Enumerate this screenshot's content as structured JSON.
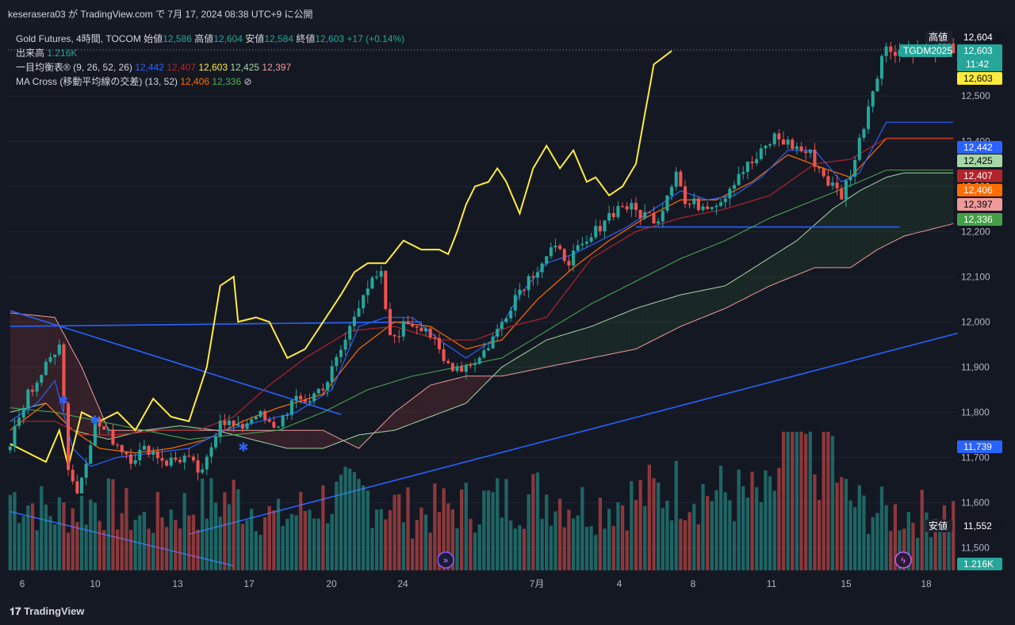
{
  "header": {
    "publish_text": "keserasera03 が TradingView.com で 7月 17, 2024 08:38 UTC+9 に公開"
  },
  "legend": {
    "symbol": "Gold Futures, 4時間, TOCOM",
    "open_label": "始値",
    "open": "12,586",
    "high_label": "高値",
    "high": "12,604",
    "low_label": "安値",
    "low": "12,584",
    "close_label": "終値",
    "close": "12,603",
    "change": "+17 (+0.14%)",
    "volume_label": "出来高",
    "volume": "1.216K",
    "ichimoku_label": "一目均衡表® (9, 26, 52, 26)",
    "ichimoku_values": [
      "12,442",
      "12,407",
      "12,603",
      "12,425",
      "12,397"
    ],
    "ma_label": "MA Cross (移動平均線の交差) (13, 52)",
    "ma_values": [
      "12,406",
      "12,336"
    ],
    "ma_icon": "⊘"
  },
  "price_axis": {
    "ticks": [
      "12,500",
      "12,400",
      "12,300",
      "12,200",
      "12,100",
      "12,000",
      "11,900",
      "11,800",
      "11,700",
      "11,600",
      "11,500"
    ],
    "tags": [
      {
        "label": "高値",
        "value": "12,604",
        "color": "#131722",
        "text": "#ffffff",
        "label_bg": "#1e222d"
      },
      {
        "label": "TGDM2025",
        "value": "12,603",
        "sub": "11:42",
        "color": "#26a69a",
        "text": "#ffffff"
      },
      {
        "value": "12,603",
        "color": "#ffeb3b",
        "text": "#000000"
      },
      {
        "value": "12,442",
        "color": "#2962ff",
        "text": "#ffffff"
      },
      {
        "value": "12,425",
        "color": "#a5d6a7",
        "text": "#000000"
      },
      {
        "value": "12,407",
        "color": "#b2242c",
        "text": "#ffffff"
      },
      {
        "value": "12,406",
        "color": "#ff6d00",
        "text": "#ffffff"
      },
      {
        "value": "12,397",
        "color": "#ef9a9a",
        "text": "#000000"
      },
      {
        "value": "12,336",
        "color": "#43a047",
        "text": "#ffffff"
      },
      {
        "value": "11,739",
        "color": "#2962ff",
        "text": "#ffffff"
      },
      {
        "label": "安値",
        "value": "11,552",
        "color": "#131722",
        "text": "#ffffff",
        "label_bg": "#1e222d"
      },
      {
        "value": "1.216K",
        "color": "#26a69a",
        "text": "#ffffff"
      }
    ]
  },
  "time_axis": {
    "labels": [
      "6",
      "10",
      "13",
      "17",
      "20",
      "24",
      "7月",
      "4",
      "8",
      "11",
      "15",
      "18"
    ]
  },
  "footer": {
    "logo_text": "TradingView"
  },
  "colors": {
    "background": "#141823",
    "up": "#26a69a",
    "down": "#ef5350",
    "tenkan": "#2962ff",
    "kijun": "#b2242c",
    "chikou": "#ffeb3b",
    "senkou_a": "#a5d6a7",
    "senkou_b": "#ef9a9a",
    "ma_fast": "#ff6d00",
    "ma_slow": "#4caf50",
    "trendline": "#2962ff"
  },
  "chart_data": {
    "type": "candlestick",
    "title": "Gold Futures, 4時間, TOCOM",
    "ylim": [
      11450,
      12660
    ],
    "candle_anchors": [
      [
        0,
        11730
      ],
      [
        4,
        11840
      ],
      [
        8,
        11900
      ],
      [
        11,
        11960
      ],
      [
        13,
        11680
      ],
      [
        15,
        11620
      ],
      [
        19,
        11780
      ],
      [
        23,
        11740
      ],
      [
        27,
        11700
      ],
      [
        31,
        11720
      ],
      [
        35,
        11690
      ],
      [
        39,
        11700
      ],
      [
        43,
        11660
      ],
      [
        47,
        11790
      ],
      [
        51,
        11760
      ],
      [
        55,
        11800
      ],
      [
        59,
        11760
      ],
      [
        63,
        11820
      ],
      [
        67,
        11830
      ],
      [
        71,
        11870
      ],
      [
        75,
        11960
      ],
      [
        79,
        12070
      ],
      [
        83,
        12100
      ],
      [
        85,
        11960
      ],
      [
        89,
        12000
      ],
      [
        93,
        11990
      ],
      [
        97,
        11910
      ],
      [
        101,
        11900
      ],
      [
        105,
        11920
      ],
      [
        109,
        11980
      ],
      [
        113,
        12060
      ],
      [
        117,
        12110
      ],
      [
        121,
        12160
      ],
      [
        125,
        12140
      ],
      [
        129,
        12170
      ],
      [
        133,
        12230
      ],
      [
        137,
        12260
      ],
      [
        141,
        12240
      ],
      [
        145,
        12230
      ],
      [
        149,
        12340
      ],
      [
        151,
        12260
      ],
      [
        155,
        12260
      ],
      [
        159,
        12270
      ],
      [
        163,
        12330
      ],
      [
        167,
        12360
      ],
      [
        171,
        12410
      ],
      [
        175,
        12390
      ],
      [
        179,
        12370
      ],
      [
        183,
        12310
      ],
      [
        186,
        12280
      ],
      [
        189,
        12360
      ],
      [
        192,
        12480
      ],
      [
        195,
        12590
      ],
      [
        196,
        12603
      ]
    ],
    "chikou_anchors": [
      [
        0,
        11730
      ],
      [
        4,
        11710
      ],
      [
        8,
        11690
      ],
      [
        11,
        11760
      ],
      [
        13,
        11680
      ],
      [
        16,
        11800
      ],
      [
        20,
        11780
      ],
      [
        24,
        11800
      ],
      [
        28,
        11760
      ],
      [
        32,
        11830
      ],
      [
        36,
        11790
      ],
      [
        40,
        11780
      ],
      [
        44,
        11900
      ],
      [
        47,
        12080
      ],
      [
        50,
        12100
      ],
      [
        51,
        12000
      ],
      [
        55,
        12010
      ],
      [
        58,
        12000
      ],
      [
        62,
        11920
      ],
      [
        66,
        11940
      ],
      [
        70,
        12000
      ],
      [
        74,
        12060
      ],
      [
        77,
        12110
      ],
      [
        80,
        12130
      ],
      [
        84,
        12130
      ],
      [
        88,
        12180
      ],
      [
        92,
        12160
      ],
      [
        96,
        12160
      ],
      [
        98,
        12150
      ],
      [
        100,
        12200
      ],
      [
        102,
        12260
      ],
      [
        104,
        12300
      ],
      [
        107,
        12310
      ],
      [
        109,
        12340
      ],
      [
        111,
        12310
      ],
      [
        114,
        12240
      ],
      [
        117,
        12340
      ],
      [
        120,
        12390
      ],
      [
        123,
        12340
      ],
      [
        126,
        12380
      ],
      [
        129,
        12310
      ],
      [
        131,
        12320
      ],
      [
        134,
        12280
      ],
      [
        137,
        12300
      ],
      [
        140,
        12350
      ],
      [
        144,
        12570
      ],
      [
        148,
        12600
      ]
    ],
    "kumo_a_anchors": [
      [
        0,
        11800
      ],
      [
        8,
        11820
      ],
      [
        14,
        11760
      ],
      [
        22,
        11740
      ],
      [
        30,
        11760
      ],
      [
        38,
        11770
      ],
      [
        46,
        11760
      ],
      [
        54,
        11740
      ],
      [
        62,
        11720
      ],
      [
        70,
        11720
      ],
      [
        78,
        11750
      ],
      [
        86,
        11760
      ],
      [
        94,
        11790
      ],
      [
        102,
        11820
      ],
      [
        110,
        11900
      ],
      [
        120,
        11960
      ],
      [
        130,
        11990
      ],
      [
        140,
        12030
      ],
      [
        150,
        12060
      ],
      [
        160,
        12080
      ],
      [
        168,
        12130
      ],
      [
        176,
        12180
      ],
      [
        184,
        12250
      ],
      [
        190,
        12290
      ],
      [
        196,
        12320
      ],
      [
        200,
        12330
      ],
      [
        212,
        12330
      ]
    ],
    "kumo_b_anchors": [
      [
        0,
        12020
      ],
      [
        10,
        12010
      ],
      [
        16,
        11900
      ],
      [
        22,
        11760
      ],
      [
        30,
        11760
      ],
      [
        40,
        11760
      ],
      [
        50,
        11760
      ],
      [
        60,
        11760
      ],
      [
        70,
        11760
      ],
      [
        78,
        11720
      ],
      [
        86,
        11800
      ],
      [
        94,
        11860
      ],
      [
        102,
        11880
      ],
      [
        110,
        11880
      ],
      [
        120,
        11900
      ],
      [
        130,
        11920
      ],
      [
        140,
        11940
      ],
      [
        150,
        11990
      ],
      [
        160,
        12030
      ],
      [
        170,
        12080
      ],
      [
        180,
        12120
      ],
      [
        188,
        12120
      ],
      [
        194,
        12160
      ],
      [
        200,
        12190
      ],
      [
        212,
        12220
      ]
    ],
    "tenkan_anchors": [
      [
        0,
        11780
      ],
      [
        6,
        11820
      ],
      [
        10,
        11870
      ],
      [
        14,
        11720
      ],
      [
        18,
        11680
      ],
      [
        24,
        11700
      ],
      [
        32,
        11710
      ],
      [
        40,
        11720
      ],
      [
        48,
        11760
      ],
      [
        56,
        11780
      ],
      [
        64,
        11800
      ],
      [
        72,
        11850
      ],
      [
        78,
        11990
      ],
      [
        84,
        12010
      ],
      [
        90,
        12010
      ],
      [
        96,
        11960
      ],
      [
        102,
        11920
      ],
      [
        108,
        11960
      ],
      [
        114,
        12060
      ],
      [
        120,
        12130
      ],
      [
        126,
        12150
      ],
      [
        132,
        12180
      ],
      [
        138,
        12210
      ],
      [
        144,
        12250
      ],
      [
        150,
        12290
      ],
      [
        156,
        12270
      ],
      [
        162,
        12280
      ],
      [
        168,
        12320
      ],
      [
        174,
        12380
      ],
      [
        180,
        12380
      ],
      [
        186,
        12310
      ],
      [
        190,
        12330
      ],
      [
        196,
        12442
      ]
    ],
    "kijun_anchors": [
      [
        0,
        11780
      ],
      [
        10,
        11780
      ],
      [
        16,
        11750
      ],
      [
        24,
        11750
      ],
      [
        34,
        11760
      ],
      [
        42,
        11760
      ],
      [
        50,
        11790
      ],
      [
        58,
        11860
      ],
      [
        66,
        11920
      ],
      [
        76,
        11980
      ],
      [
        86,
        11990
      ],
      [
        96,
        11960
      ],
      [
        104,
        11960
      ],
      [
        112,
        11990
      ],
      [
        120,
        12010
      ],
      [
        130,
        12140
      ],
      [
        140,
        12200
      ],
      [
        150,
        12230
      ],
      [
        160,
        12250
      ],
      [
        170,
        12280
      ],
      [
        180,
        12350
      ],
      [
        188,
        12360
      ],
      [
        196,
        12407
      ]
    ],
    "ma_fast_anchors": [
      [
        0,
        11760
      ],
      [
        8,
        11820
      ],
      [
        14,
        11760
      ],
      [
        20,
        11720
      ],
      [
        28,
        11710
      ],
      [
        36,
        11720
      ],
      [
        44,
        11740
      ],
      [
        52,
        11780
      ],
      [
        60,
        11810
      ],
      [
        70,
        11840
      ],
      [
        78,
        11940
      ],
      [
        86,
        12000
      ],
      [
        94,
        11990
      ],
      [
        102,
        11940
      ],
      [
        110,
        11960
      ],
      [
        118,
        12050
      ],
      [
        126,
        12120
      ],
      [
        134,
        12180
      ],
      [
        142,
        12230
      ],
      [
        150,
        12270
      ],
      [
        158,
        12270
      ],
      [
        166,
        12310
      ],
      [
        174,
        12370
      ],
      [
        182,
        12340
      ],
      [
        188,
        12320
      ],
      [
        196,
        12406
      ]
    ],
    "ma_slow_anchors": [
      [
        0,
        11810
      ],
      [
        10,
        11800
      ],
      [
        20,
        11780
      ],
      [
        30,
        11760
      ],
      [
        40,
        11740
      ],
      [
        50,
        11750
      ],
      [
        60,
        11760
      ],
      [
        70,
        11800
      ],
      [
        80,
        11850
      ],
      [
        90,
        11880
      ],
      [
        100,
        11900
      ],
      [
        110,
        11920
      ],
      [
        120,
        11980
      ],
      [
        130,
        12040
      ],
      [
        140,
        12090
      ],
      [
        150,
        12140
      ],
      [
        160,
        12180
      ],
      [
        170,
        12230
      ],
      [
        180,
        12270
      ],
      [
        190,
        12310
      ],
      [
        196,
        12336
      ]
    ],
    "volume_anchors": [
      [
        0,
        60
      ],
      [
        10,
        45
      ],
      [
        20,
        55
      ],
      [
        30,
        40
      ],
      [
        40,
        50
      ],
      [
        50,
        58
      ],
      [
        60,
        40
      ],
      [
        70,
        55
      ],
      [
        80,
        60
      ],
      [
        90,
        45
      ],
      [
        100,
        50
      ],
      [
        110,
        55
      ],
      [
        120,
        60
      ],
      [
        130,
        50
      ],
      [
        140,
        58
      ],
      [
        150,
        65
      ],
      [
        160,
        60
      ],
      [
        170,
        55
      ],
      [
        175,
        120
      ],
      [
        180,
        80
      ],
      [
        183,
        110
      ],
      [
        186,
        60
      ],
      [
        190,
        50
      ],
      [
        196,
        45
      ]
    ],
    "trendlines": [
      {
        "from": [
          0,
          11990
        ],
        "to": [
          92,
          12000
        ]
      },
      {
        "from": [
          0,
          12025
        ],
        "to": [
          74,
          11795
        ]
      },
      {
        "from": [
          40,
          11530
        ],
        "to": [
          212,
          11975
        ]
      },
      {
        "from": [
          0,
          11580
        ],
        "to": [
          50,
          11460
        ]
      },
      {
        "from": [
          140,
          12210
        ],
        "to": [
          199,
          12210
        ]
      }
    ],
    "series_count": 212
  }
}
